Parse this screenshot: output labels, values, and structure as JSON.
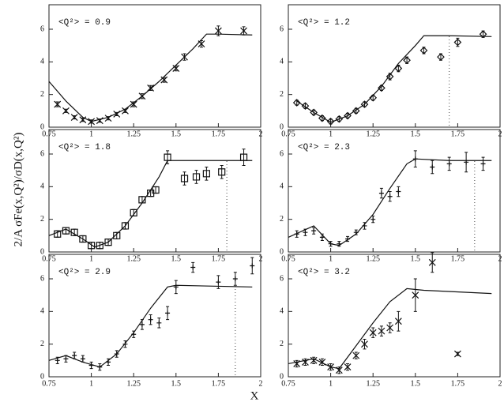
{
  "figure": {
    "y_label": "2/A σFe(x,Q²)/σD(x,Q²)",
    "x_label": "X"
  },
  "chart_data": [
    {
      "type": "scatter",
      "annotation": "<Q²> = 0.9",
      "marker": "x",
      "xlim": [
        0.75,
        2
      ],
      "ylim": [
        0,
        7.5
      ],
      "xticks": [
        0.75,
        1,
        1.25,
        1.5,
        1.75,
        2
      ],
      "yticks": [
        0,
        2,
        4,
        6
      ],
      "points": {
        "x": [
          0.8,
          0.85,
          0.9,
          0.95,
          1.0,
          1.05,
          1.1,
          1.15,
          1.2,
          1.25,
          1.3,
          1.35,
          1.43,
          1.5,
          1.55,
          1.65,
          1.75,
          1.9
        ],
        "values": [
          1.4,
          1.0,
          0.6,
          0.45,
          0.35,
          0.4,
          0.55,
          0.8,
          1.0,
          1.4,
          1.9,
          2.4,
          2.9,
          3.6,
          4.3,
          5.1,
          5.9,
          5.9
        ],
        "errors": [
          0.15,
          0.1,
          0.1,
          0.1,
          0.1,
          0.1,
          0.1,
          0.1,
          0.1,
          0.15,
          0.15,
          0.15,
          0.15,
          0.15,
          0.2,
          0.2,
          0.3,
          0.25
        ]
      },
      "curve": {
        "x": [
          0.75,
          0.85,
          0.95,
          1.0,
          1.1,
          1.2,
          1.3,
          1.4,
          1.5,
          1.6,
          1.68,
          1.75,
          1.95
        ],
        "values": [
          2.8,
          1.6,
          0.6,
          0.35,
          0.6,
          1.1,
          1.9,
          2.8,
          3.8,
          4.8,
          5.7,
          5.7,
          5.65
        ]
      }
    },
    {
      "type": "scatter",
      "annotation": "<Q²> = 1.2",
      "marker": "diamond",
      "xlim": [
        0.75,
        2
      ],
      "ylim": [
        0,
        7.5
      ],
      "xticks": [
        0.75,
        1,
        1.25,
        1.5,
        1.75,
        2
      ],
      "yticks": [
        0,
        2,
        4,
        6
      ],
      "cut": 1.7,
      "points": {
        "x": [
          0.8,
          0.85,
          0.9,
          0.95,
          1.0,
          1.05,
          1.1,
          1.15,
          1.2,
          1.25,
          1.3,
          1.35,
          1.4,
          1.45,
          1.55,
          1.65,
          1.75,
          1.9
        ],
        "values": [
          1.5,
          1.3,
          0.9,
          0.55,
          0.35,
          0.5,
          0.7,
          1.0,
          1.4,
          1.8,
          2.4,
          3.1,
          3.6,
          4.1,
          4.7,
          4.3,
          5.2,
          5.7
        ],
        "errors": [
          0.15,
          0.15,
          0.15,
          0.15,
          0.15,
          0.15,
          0.15,
          0.15,
          0.15,
          0.15,
          0.15,
          0.2,
          0.2,
          0.2,
          0.2,
          0.2,
          0.25,
          0.2
        ]
      },
      "curve": {
        "x": [
          0.8,
          0.9,
          1.0,
          1.1,
          1.2,
          1.3,
          1.4,
          1.5,
          1.55,
          1.7,
          1.95
        ],
        "values": [
          1.6,
          0.9,
          0.3,
          0.7,
          1.4,
          2.5,
          3.9,
          5.0,
          5.6,
          5.6,
          5.55
        ]
      }
    },
    {
      "type": "scatter",
      "annotation": "<Q²> = 1.8",
      "marker": "square",
      "xlim": [
        0.75,
        2
      ],
      "ylim": [
        0,
        7.5
      ],
      "xticks": [
        0.75,
        1,
        1.25,
        1.5,
        1.75,
        2
      ],
      "yticks": [
        0,
        2,
        4,
        6
      ],
      "cut": 1.8,
      "points": {
        "x": [
          0.8,
          0.85,
          0.9,
          0.95,
          1.0,
          1.05,
          1.1,
          1.15,
          1.2,
          1.25,
          1.3,
          1.35,
          1.38,
          1.45,
          1.55,
          1.62,
          1.68,
          1.77,
          1.9
        ],
        "values": [
          1.1,
          1.3,
          1.2,
          0.8,
          0.4,
          0.4,
          0.6,
          1.0,
          1.6,
          2.4,
          3.2,
          3.6,
          3.8,
          5.8,
          4.5,
          4.6,
          4.8,
          4.9,
          5.8
        ],
        "errors": [
          0.2,
          0.2,
          0.2,
          0.2,
          0.2,
          0.2,
          0.2,
          0.2,
          0.2,
          0.2,
          0.2,
          0.2,
          0.2,
          0.4,
          0.4,
          0.4,
          0.4,
          0.4,
          0.5
        ]
      },
      "curve": {
        "x": [
          0.75,
          0.85,
          0.95,
          1.02,
          1.1,
          1.2,
          1.3,
          1.4,
          1.45,
          1.6,
          1.95
        ],
        "values": [
          1.0,
          1.4,
          0.8,
          0.3,
          0.6,
          1.6,
          3.0,
          4.6,
          5.6,
          5.6,
          5.6
        ]
      }
    },
    {
      "type": "scatter",
      "annotation": "<Q²> = 2.3",
      "marker": "plus",
      "xlim": [
        0.75,
        2
      ],
      "ylim": [
        0,
        7.5
      ],
      "xticks": [
        0.75,
        1,
        1.25,
        1.5,
        1.75,
        2
      ],
      "yticks": [
        0,
        2,
        4,
        6
      ],
      "cut": 1.85,
      "points": {
        "x": [
          0.8,
          0.85,
          0.9,
          0.95,
          1.0,
          1.05,
          1.1,
          1.15,
          1.2,
          1.25,
          1.3,
          1.35,
          1.4,
          1.5,
          1.6,
          1.7,
          1.8,
          1.9
        ],
        "values": [
          1.1,
          1.2,
          1.3,
          0.9,
          0.5,
          0.5,
          0.8,
          1.2,
          1.6,
          2.0,
          3.6,
          3.4,
          3.7,
          5.7,
          5.2,
          5.4,
          5.5,
          5.4
        ],
        "errors": [
          0.2,
          0.2,
          0.2,
          0.2,
          0.15,
          0.15,
          0.15,
          0.15,
          0.2,
          0.2,
          0.3,
          0.3,
          0.3,
          0.5,
          0.4,
          0.4,
          0.6,
          0.4
        ]
      },
      "curve": {
        "x": [
          0.75,
          0.9,
          1.0,
          1.05,
          1.15,
          1.25,
          1.35,
          1.45,
          1.5,
          1.7,
          1.95
        ],
        "values": [
          0.9,
          1.6,
          0.5,
          0.4,
          1.1,
          2.3,
          3.9,
          5.4,
          5.7,
          5.6,
          5.6
        ]
      }
    },
    {
      "type": "scatter",
      "annotation": "<Q²> = 2.9",
      "marker": "plus",
      "xlim": [
        0.75,
        2
      ],
      "ylim": [
        0,
        7.5
      ],
      "xticks": [
        0.75,
        1,
        1.25,
        1.5,
        1.75,
        2
      ],
      "yticks": [
        0,
        2,
        4,
        6
      ],
      "cut": 1.85,
      "points": {
        "x": [
          0.8,
          0.85,
          0.9,
          0.95,
          1.0,
          1.05,
          1.1,
          1.15,
          1.2,
          1.25,
          1.3,
          1.35,
          1.4,
          1.45,
          1.5,
          1.6,
          1.75,
          1.85,
          1.95
        ],
        "values": [
          1.0,
          1.1,
          1.3,
          1.1,
          0.7,
          0.6,
          0.9,
          1.4,
          2.0,
          2.6,
          3.2,
          3.5,
          3.3,
          3.9,
          5.5,
          6.7,
          5.8,
          6.0,
          6.8
        ],
        "errors": [
          0.2,
          0.2,
          0.2,
          0.2,
          0.2,
          0.2,
          0.2,
          0.2,
          0.2,
          0.2,
          0.3,
          0.3,
          0.3,
          0.4,
          0.4,
          0.3,
          0.4,
          0.4,
          0.5
        ]
      },
      "curve": {
        "x": [
          0.75,
          0.85,
          0.95,
          1.05,
          1.15,
          1.25,
          1.35,
          1.45,
          1.5,
          1.95
        ],
        "values": [
          1.0,
          1.3,
          0.9,
          0.6,
          1.4,
          2.7,
          4.2,
          5.5,
          5.6,
          5.5
        ]
      }
    },
    {
      "type": "scatter",
      "annotation": "<Q²> = 3.2",
      "marker": "x",
      "xlim": [
        0.75,
        2
      ],
      "ylim": [
        0,
        7.5
      ],
      "xticks": [
        0.75,
        1,
        1.25,
        1.5,
        1.75,
        2
      ],
      "yticks": [
        0,
        2,
        4,
        6
      ],
      "points": {
        "x": [
          0.8,
          0.85,
          0.9,
          0.95,
          1.0,
          1.05,
          1.1,
          1.15,
          1.2,
          1.25,
          1.3,
          1.35,
          1.4,
          1.5,
          1.6,
          1.75
        ],
        "values": [
          0.8,
          0.9,
          1.0,
          0.9,
          0.6,
          0.4,
          0.6,
          1.3,
          2.0,
          2.7,
          2.8,
          3.0,
          3.4,
          5.0,
          7.0,
          1.4
        ],
        "errors": [
          0.2,
          0.2,
          0.2,
          0.2,
          0.2,
          0.2,
          0.2,
          0.2,
          0.3,
          0.3,
          0.3,
          0.3,
          0.6,
          1.0,
          0.6,
          0.1
        ]
      },
      "curve": {
        "x": [
          0.75,
          0.9,
          1.0,
          1.05,
          1.15,
          1.25,
          1.35,
          1.45,
          1.55,
          1.95
        ],
        "values": [
          0.8,
          1.1,
          0.6,
          0.5,
          1.9,
          3.3,
          4.6,
          5.4,
          5.3,
          5.1
        ]
      }
    }
  ]
}
